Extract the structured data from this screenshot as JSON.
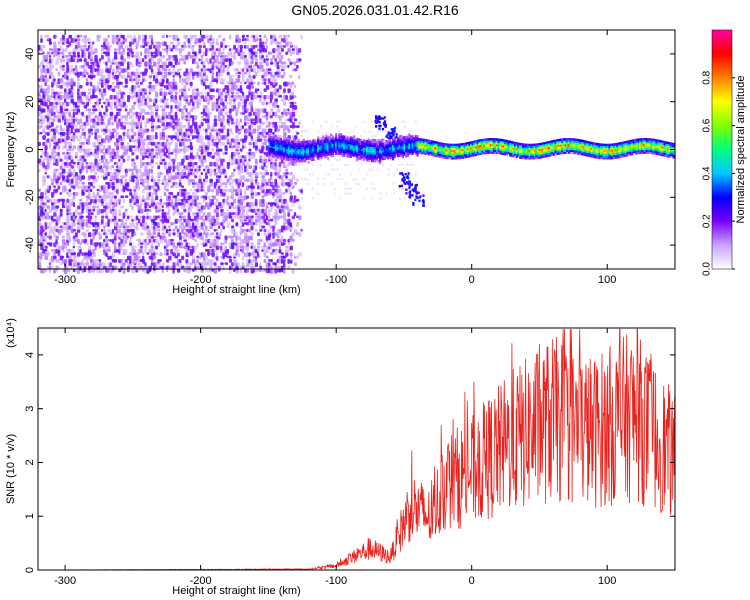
{
  "title": "GN05.2026.031.01.42.R16",
  "chart_data": [
    {
      "type": "heatmap",
      "xlabel": "Height of straight line (km)",
      "ylabel": "Frequency (Hz)",
      "xlim": [
        -320,
        150
      ],
      "ylim": [
        -50,
        50
      ],
      "x_ticks": [
        -300,
        -200,
        -100,
        0,
        100
      ],
      "y_ticks": [
        -40,
        -20,
        0,
        20,
        40
      ],
      "colorbar": {
        "label": "Normalized spectral amplitude",
        "range": [
          0,
          1
        ],
        "ticks": [
          "0.0",
          "0.2",
          "0.4",
          "0.6",
          "0.8"
        ],
        "colors": [
          "#ffffff",
          "#c9a3ff",
          "#7a00ff",
          "#0000ff",
          "#00c8ff",
          "#00ff80",
          "#80ff00",
          "#ffff00",
          "#ff8000",
          "#ff0000",
          "#ff00a0"
        ]
      },
      "description_regions": [
        {
          "x_range": [
            -320,
            -125
          ],
          "pattern": "noise",
          "freq_range": [
            -50,
            48
          ]
        },
        {
          "x_range": [
            -150,
            150
          ],
          "pattern": "narrowband signal",
          "center_freq": 1
        }
      ],
      "grid": false
    },
    {
      "type": "line",
      "xlabel": "Height of straight line (km)",
      "ylabel": "SNR (10 * v/v)",
      "ylabel_multiplier": "(x10⁴)",
      "xlim": [
        -320,
        150
      ],
      "ylim": [
        0,
        4.5
      ],
      "x_ticks": [
        -300,
        -200,
        -100,
        0,
        100
      ],
      "y_ticks": [
        0,
        1,
        2,
        3,
        4
      ],
      "series": [
        {
          "color": "#e8231e",
          "envelope": [
            {
              "x": -320,
              "y": 0.0
            },
            {
              "x": -120,
              "y": 0.02
            },
            {
              "x": -100,
              "y": 0.1
            },
            {
              "x": -75,
              "y": 0.5
            },
            {
              "x": -60,
              "y": 0.3
            },
            {
              "x": -45,
              "y": 1.5
            },
            {
              "x": -30,
              "y": 1.2
            },
            {
              "x": -20,
              "y": 2.0
            },
            {
              "x": 0,
              "y": 2.3
            },
            {
              "x": 30,
              "y": 3.0
            },
            {
              "x": 60,
              "y": 3.5
            },
            {
              "x": 90,
              "y": 3.2
            },
            {
              "x": 120,
              "y": 3.6
            },
            {
              "x": 150,
              "y": 2.6
            }
          ]
        }
      ],
      "grid": false
    }
  ]
}
